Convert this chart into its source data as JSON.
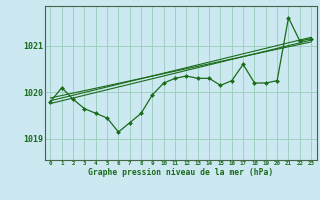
{
  "title": "Graphe pression niveau de la mer (hPa)",
  "bg_color": "#cce8f0",
  "grid_color": "#99ccbb",
  "line_color": "#1a6b1a",
  "marker_color": "#1a6b1a",
  "xlim": [
    -0.5,
    23.5
  ],
  "ylim": [
    1018.55,
    1021.85
  ],
  "yticks": [
    1019,
    1020,
    1021
  ],
  "xticks": [
    0,
    1,
    2,
    3,
    4,
    5,
    6,
    7,
    8,
    9,
    10,
    11,
    12,
    13,
    14,
    15,
    16,
    17,
    18,
    19,
    20,
    21,
    22,
    23
  ],
  "pressure_data": [
    1019.8,
    1020.1,
    1019.85,
    1019.65,
    1019.55,
    1019.45,
    1019.15,
    1019.35,
    1019.55,
    1019.95,
    1020.2,
    1020.3,
    1020.35,
    1020.3,
    1020.3,
    1020.15,
    1020.25,
    1020.6,
    1020.2,
    1020.2,
    1020.25,
    1021.6,
    1021.1,
    1021.15
  ],
  "trend_lines": [
    {
      "x": [
        0,
        23
      ],
      "y": [
        1019.82,
        1021.18
      ]
    },
    {
      "x": [
        0,
        23
      ],
      "y": [
        1019.88,
        1021.08
      ]
    },
    {
      "x": [
        0,
        23
      ],
      "y": [
        1019.76,
        1021.12
      ]
    }
  ]
}
